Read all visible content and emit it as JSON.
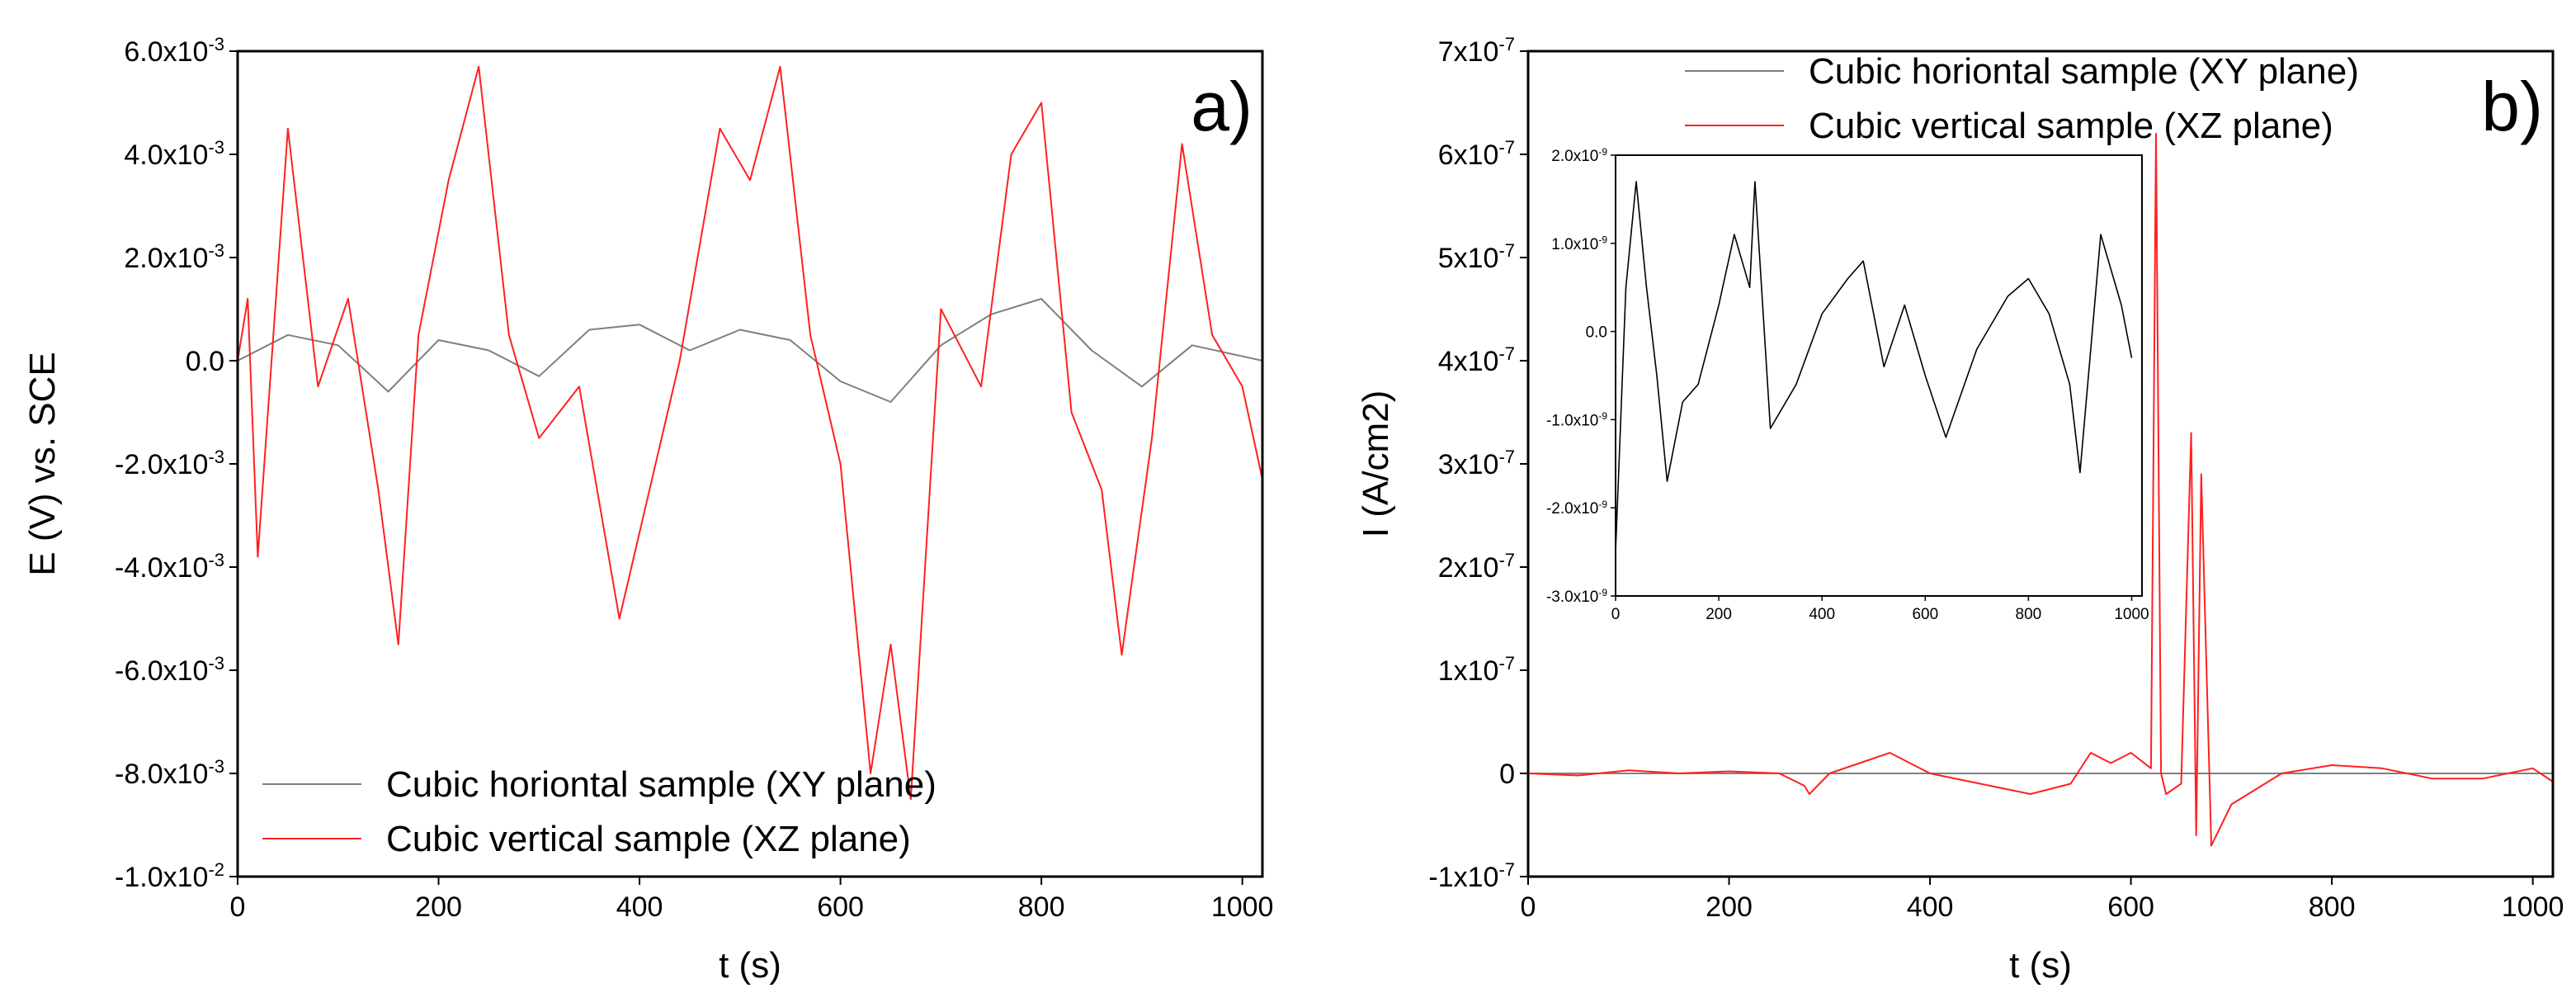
{
  "chart_data": [
    {
      "type": "line",
      "panel_label": "a)",
      "xlabel": "t (s)",
      "ylabel": "E (V) vs. SCE",
      "xlim": [
        0,
        1020
      ],
      "ylim": [
        -0.01,
        0.006
      ],
      "xticks": [
        0,
        200,
        400,
        600,
        800,
        1000
      ],
      "xtick_labels": [
        "0",
        "200",
        "400",
        "600",
        "800",
        "1000"
      ],
      "yticks": [
        0.006,
        0.004,
        0.002,
        0,
        -0.002,
        -0.004,
        -0.006,
        -0.008,
        -0.01
      ],
      "ytick_labels": [
        "6.0x10-3",
        "4.0x10-3",
        "2.0x10-3",
        "0.0",
        "-2.0x10-3",
        "-4.0x10-3",
        "-6.0x10-3",
        "-8.0x10-3",
        "-1.0x10-2"
      ],
      "legend_position": "bottom-left",
      "series": [
        {
          "name": "Cubic horiontal sample (XY plane)",
          "color": "#7f7f7f",
          "x": [
            0,
            50,
            100,
            150,
            200,
            250,
            300,
            350,
            400,
            450,
            500,
            550,
            600,
            650,
            700,
            750,
            800,
            850,
            900,
            950,
            1020
          ],
          "y": [
            0.0,
            0.0005,
            0.0003,
            -0.0006,
            0.0004,
            0.0002,
            -0.0003,
            0.0006,
            0.0007,
            0.0002,
            0.0006,
            0.0004,
            -0.0004,
            -0.0008,
            0.0003,
            0.0009,
            0.0012,
            0.0002,
            -0.0005,
            0.0003,
            0.0
          ]
        },
        {
          "name": "Cubic vertical sample (XZ plane)",
          "color": "#ff2020",
          "x": [
            0,
            10,
            20,
            50,
            80,
            110,
            140,
            160,
            180,
            210,
            240,
            270,
            300,
            340,
            380,
            410,
            440,
            480,
            510,
            540,
            570,
            600,
            630,
            650,
            670,
            700,
            740,
            770,
            800,
            830,
            860,
            880,
            910,
            940,
            970,
            1000,
            1020
          ],
          "y": [
            0.0,
            0.0012,
            -0.0038,
            0.0045,
            -0.0005,
            0.0012,
            -0.0025,
            -0.0055,
            0.0005,
            0.0035,
            0.0057,
            0.0005,
            -0.0015,
            -0.0005,
            -0.005,
            -0.0025,
            0.0,
            0.0045,
            0.0035,
            0.0057,
            0.0005,
            -0.002,
            -0.008,
            -0.0055,
            -0.0085,
            0.001,
            -0.0005,
            0.004,
            0.005,
            -0.001,
            -0.0025,
            -0.0057,
            -0.0015,
            0.0042,
            0.0005,
            -0.0005,
            -0.0023
          ]
        }
      ]
    },
    {
      "type": "line",
      "panel_label": "b)",
      "xlabel": "t (s)",
      "ylabel": "I (A/cm2)",
      "xlim": [
        0,
        1020
      ],
      "ylim": [
        -1e-07,
        7e-07
      ],
      "xticks": [
        0,
        200,
        400,
        600,
        800,
        1000
      ],
      "xtick_labels": [
        "0",
        "200",
        "400",
        "600",
        "800",
        "1000"
      ],
      "yticks": [
        7e-07,
        6e-07,
        5e-07,
        4e-07,
        3e-07,
        2e-07,
        1e-07,
        0,
        -1e-07
      ],
      "ytick_labels": [
        "7x10-7",
        "6x10-7",
        "5x10-7",
        "4x10-7",
        "3x10-7",
        "2x10-7",
        "1x10-7",
        "0",
        "-1x10-7"
      ],
      "legend_position": "top-right",
      "series": [
        {
          "name": "Cubic horiontal sample (XY plane)",
          "color": "#7f7f7f",
          "x": [
            0,
            200,
            400,
            600,
            800,
            1020
          ],
          "y": [
            0.0,
            0.0,
            0.0,
            0.0,
            0.0,
            0.0
          ]
        },
        {
          "name": "Cubic vertical sample (XZ plane)",
          "color": "#ff2020",
          "x": [
            0,
            50,
            100,
            150,
            200,
            250,
            275,
            280,
            300,
            330,
            360,
            400,
            450,
            500,
            540,
            560,
            580,
            600,
            620,
            625,
            630,
            635,
            650,
            660,
            665,
            670,
            680,
            700,
            750,
            800,
            850,
            900,
            950,
            1000,
            1020
          ],
          "y": [
            0.0,
            -2e-09,
            3e-09,
            0.0,
            2e-09,
            0.0,
            -1.2e-08,
            -2e-08,
            0.0,
            1e-08,
            2e-08,
            0.0,
            -1e-08,
            -2e-08,
            -1e-08,
            2e-08,
            1e-08,
            2e-08,
            5e-09,
            6.2e-07,
            0.0,
            -2e-08,
            -1e-08,
            3.3e-07,
            -6e-08,
            2.9e-07,
            -7e-08,
            -3e-08,
            0.0,
            8e-09,
            5e-09,
            -5e-09,
            -5e-09,
            5e-09,
            -8e-09
          ]
        }
      ],
      "inset": {
        "xlim": [
          0,
          1020
        ],
        "ylim": [
          -3e-09,
          2e-09
        ],
        "xticks": [
          0,
          200,
          400,
          600,
          800,
          1000
        ],
        "xtick_labels": [
          "0",
          "200",
          "400",
          "600",
          "800",
          "1000"
        ],
        "yticks": [
          2e-09,
          1e-09,
          0,
          -1e-09,
          -2e-09,
          -3e-09
        ],
        "ytick_labels": [
          "2.0x10-9",
          "1.0x10-9",
          "0.0",
          "-1.0x10-9",
          "-2.0x10-9",
          "-3.0x10-9"
        ],
        "series": [
          {
            "name": "Cubic horiontal sample (XY plane)",
            "color": "#000000",
            "x": [
              0,
              20,
              40,
              60,
              80,
              100,
              130,
              160,
              200,
              230,
              260,
              270,
              300,
              350,
              400,
              450,
              480,
              520,
              560,
              600,
              640,
              700,
              760,
              800,
              840,
              880,
              900,
              940,
              980,
              1000
            ],
            "y": [
              -2.5e-09,
              5e-10,
              1.7e-09,
              5e-10,
              -5e-10,
              -1.7e-09,
              -8e-10,
              -6e-10,
              3e-10,
              1.1e-09,
              5e-10,
              1.7e-09,
              -1.1e-09,
              -6e-10,
              2e-10,
              6e-10,
              8e-10,
              -4e-10,
              3e-10,
              -5e-10,
              -1.2e-09,
              -2e-10,
              4e-10,
              6e-10,
              2e-10,
              -6e-10,
              -1.6e-09,
              1.1e-09,
              3e-10,
              -3e-10
            ]
          }
        ]
      }
    }
  ]
}
